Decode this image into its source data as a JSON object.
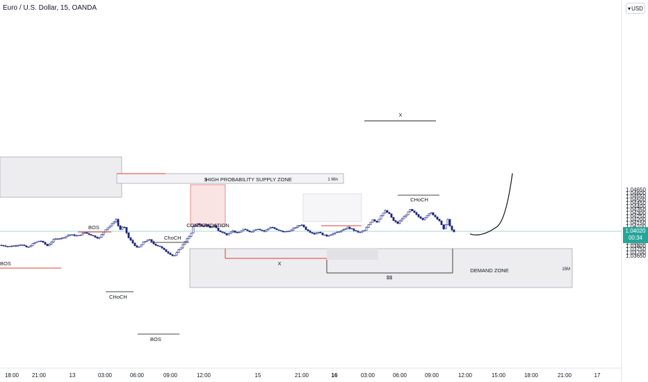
{
  "header": {
    "title": "Euro / U.S. Dollar, 15, OANDA"
  },
  "price_axis": {
    "currency": "USD",
    "currency_arrow": "▾",
    "ticks": [
      "1.04650",
      "1.04600",
      "1.04550",
      "1.04500",
      "1.04450",
      "1.04400",
      "1.04350",
      "1.04300",
      "1.04250",
      "1.04200",
      "1.04150",
      "1.04100",
      "1.04050",
      "1.03950",
      "1.03900",
      "1.03850",
      "1.03800",
      "1.03750",
      "1.03700",
      "1.03650"
    ],
    "current_price": "1.04020",
    "countdown": "00:34",
    "colors": {
      "label_bg": "#26a69a",
      "label_text": "#ffffff"
    }
  },
  "time_axis": {
    "ticks": [
      "18:00",
      "21:00",
      "13",
      "03:00",
      "06:00",
      "09:00",
      "12:00",
      "15",
      "21:00",
      "16",
      "03:00",
      "06:00",
      "09:00",
      "12:00",
      "15:00",
      "18:00",
      "21:00",
      "17"
    ]
  },
  "annotations": {
    "supply_zone": "HIGH PROBABILITY SUPPLY ZONE",
    "supply_tf": "1 Min",
    "demand_zone": "DEMAND ZONE",
    "demand_tf": "15M",
    "consolidation": "CONSOLIDATION",
    "dollar": "$",
    "ss": "$$",
    "x_bottom": "X",
    "x_top": "X",
    "bos_left": "BOS",
    "bos_mid": "BOS",
    "bos_low": "BOS",
    "choch_low": "CHoCH",
    "choch_mid": "ChoCH",
    "choch_right": "CHoCH"
  },
  "colors": {
    "candle": "#1a237e",
    "zone_fill": "#ededf0",
    "zone_border": "#9e9ea6",
    "bos_line": "#e53935",
    "current_line": "#80cbc4"
  },
  "chart_data": {
    "type": "candlestick",
    "symbol": "Euro / U.S. Dollar",
    "timeframe": "15",
    "source": "OANDA",
    "current_price": 1.0402,
    "ylim": [
      1.0362,
      1.0468
    ],
    "x_ticks": [
      "18:00",
      "21:00",
      "13",
      "03:00",
      "06:00",
      "09:00",
      "12:00",
      "15",
      "21:00",
      "16",
      "03:00",
      "06:00",
      "09:00",
      "12:00",
      "15:00",
      "18:00",
      "21:00",
      "17"
    ],
    "path_points": [
      [
        0,
        1.0381
      ],
      [
        12,
        1.0379
      ],
      [
        20,
        1.038
      ],
      [
        30,
        1.0382
      ],
      [
        40,
        1.0377
      ],
      [
        48,
        1.0384
      ],
      [
        58,
        1.0388
      ],
      [
        68,
        1.038
      ],
      [
        78,
        1.039
      ],
      [
        90,
        1.0392
      ],
      [
        100,
        1.0397
      ],
      [
        112,
        1.0395
      ],
      [
        122,
        1.04
      ],
      [
        132,
        1.0396
      ],
      [
        142,
        1.0391
      ],
      [
        152,
        1.0405
      ],
      [
        160,
        1.0412
      ],
      [
        167,
        1.042
      ],
      [
        172,
        1.0404
      ],
      [
        178,
        1.041
      ],
      [
        185,
        1.0392
      ],
      [
        192,
        1.0383
      ],
      [
        198,
        1.0376
      ],
      [
        206,
        1.0385
      ],
      [
        214,
        1.039
      ],
      [
        222,
        1.0382
      ],
      [
        230,
        1.0379
      ],
      [
        238,
        1.0372
      ],
      [
        244,
        1.0368
      ],
      [
        250,
        1.0364
      ],
      [
        256,
        1.0372
      ],
      [
        262,
        1.038
      ],
      [
        268,
        1.039
      ],
      [
        274,
        1.0396
      ],
      [
        278,
        1.0409
      ],
      [
        284,
        1.0414
      ],
      [
        290,
        1.041
      ],
      [
        296,
        1.0412
      ],
      [
        302,
        1.0407
      ],
      [
        308,
        1.0411
      ],
      [
        314,
        1.0403
      ],
      [
        320,
        1.04
      ],
      [
        326,
        1.0397
      ],
      [
        334,
        1.0403
      ],
      [
        342,
        1.0399
      ],
      [
        350,
        1.0405
      ],
      [
        360,
        1.0401
      ],
      [
        370,
        1.0406
      ],
      [
        380,
        1.0402
      ],
      [
        390,
        1.0409
      ],
      [
        398,
        1.0404
      ],
      [
        408,
        1.0401
      ],
      [
        418,
        1.0403
      ],
      [
        426,
        1.0409
      ],
      [
        434,
        1.0412
      ],
      [
        440,
        1.0405
      ],
      [
        446,
        1.0401
      ],
      [
        452,
        1.0398
      ],
      [
        458,
        1.0401
      ],
      [
        464,
        1.0397
      ],
      [
        470,
        1.0395
      ],
      [
        478,
        1.0398
      ],
      [
        486,
        1.0401
      ],
      [
        494,
        1.0404
      ],
      [
        500,
        1.0408
      ],
      [
        508,
        1.0404
      ],
      [
        516,
        1.04
      ],
      [
        524,
        1.0403
      ],
      [
        530,
        1.0412
      ],
      [
        536,
        1.042
      ],
      [
        542,
        1.0416
      ],
      [
        548,
        1.0426
      ],
      [
        554,
        1.0433
      ],
      [
        560,
        1.0428
      ],
      [
        566,
        1.0418
      ],
      [
        572,
        1.0414
      ],
      [
        578,
        1.0421
      ],
      [
        584,
        1.0427
      ],
      [
        590,
        1.0435
      ],
      [
        596,
        1.043
      ],
      [
        602,
        1.0424
      ],
      [
        608,
        1.042
      ],
      [
        614,
        1.0426
      ],
      [
        620,
        1.043
      ],
      [
        626,
        1.0424
      ],
      [
        632,
        1.0418
      ],
      [
        638,
        1.0405
      ],
      [
        644,
        1.042
      ],
      [
        648,
        1.0406
      ],
      [
        654,
        1.04
      ]
    ],
    "projection": [
      [
        676,
        1.0398
      ],
      [
        700,
        1.0398
      ],
      [
        715,
        1.0409
      ],
      [
        726,
        1.0428
      ],
      [
        733,
        1.046
      ],
      [
        737,
        1.049
      ]
    ],
    "zones": [
      {
        "label": "HIGH PROBABILITY SUPPLY ZONE",
        "top": 1.0422,
        "bottom": 1.042
      },
      {
        "label": "DEMAND ZONE",
        "top": 1.0398,
        "bottom": 1.0386
      }
    ]
  }
}
